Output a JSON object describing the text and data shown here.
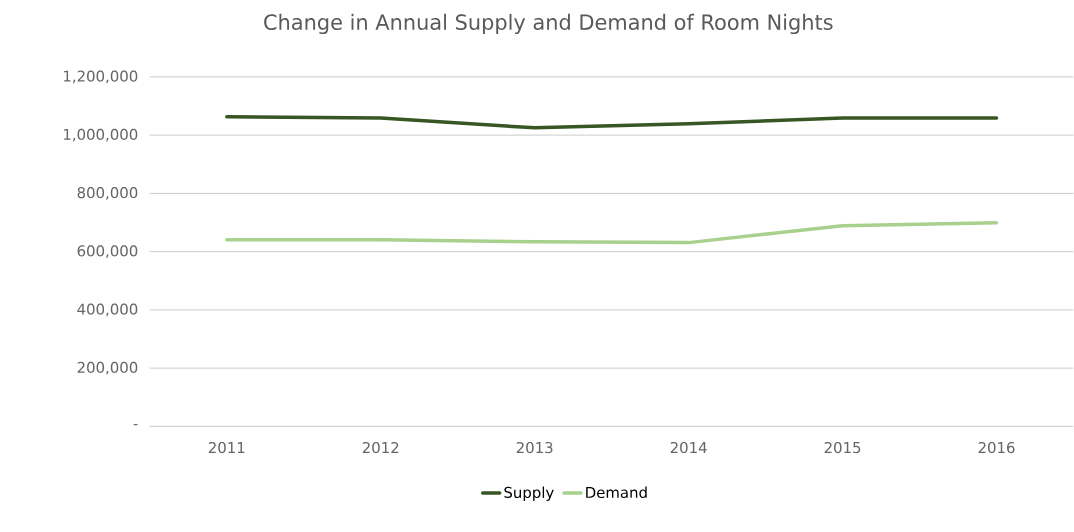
{
  "chart_data": {
    "type": "line",
    "title": "Change in Annual Supply and Demand of Room Nights",
    "categories": [
      "2011",
      "2012",
      "2013",
      "2014",
      "2015",
      "2016"
    ],
    "series": [
      {
        "name": "Supply",
        "color": "#375623",
        "values": [
          1063000,
          1059000,
          1025000,
          1039000,
          1059000,
          1059000
        ]
      },
      {
        "name": "Demand",
        "color": "#a9d18e",
        "values": [
          641000,
          641000,
          634000,
          631000,
          689000,
          699000
        ]
      }
    ],
    "ylim": [
      0,
      1200000
    ],
    "yticks": [
      {
        "value": 0,
        "label": "-"
      },
      {
        "value": 200000,
        "label": "200,000"
      },
      {
        "value": 400000,
        "label": "400,000"
      },
      {
        "value": 600000,
        "label": "600,000"
      },
      {
        "value": 800000,
        "label": "800,000"
      },
      {
        "value": 1000000,
        "label": "1,000,000"
      },
      {
        "value": 1200000,
        "label": "1,200,000"
      }
    ],
    "grid": "y",
    "legend": "bottom",
    "marker": "none",
    "line_style": "solid"
  }
}
